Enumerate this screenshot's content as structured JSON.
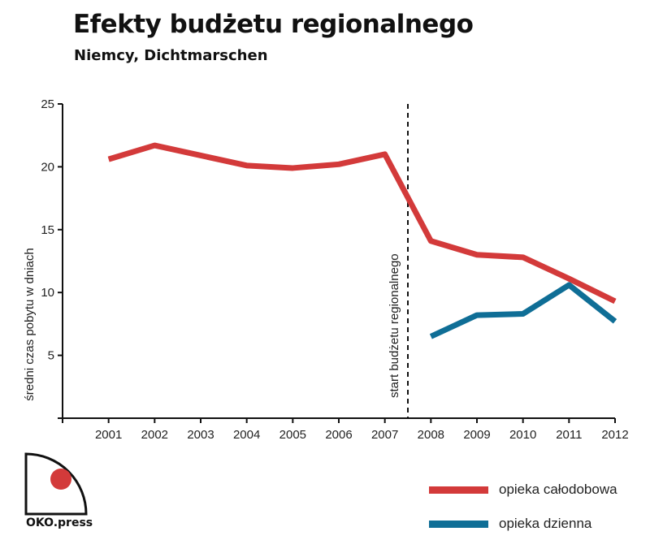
{
  "title": "Efekty budżetu regionalnego",
  "subtitle": "Niemcy, Dichtmarschen",
  "logo_text": "OKO.press",
  "colors": {
    "red": "#d33a3a",
    "blue": "#0f6e96",
    "axis": "#111111",
    "logo_dot": "#d33a3a"
  },
  "chart_data": {
    "type": "line",
    "ylabel": "średni czas pobytu w dniach",
    "xlabel": "",
    "ylim": [
      0,
      25
    ],
    "yticks": [
      5,
      10,
      15,
      20,
      25
    ],
    "x": [
      2001,
      2002,
      2003,
      2004,
      2005,
      2006,
      2007,
      2008,
      2009,
      2010,
      2011,
      2012
    ],
    "series": [
      {
        "name": "opieka całodobowa",
        "color": "#d33a3a",
        "values": [
          20.6,
          21.7,
          20.9,
          20.1,
          19.9,
          20.2,
          21.0,
          14.1,
          13.0,
          12.8,
          11.1,
          9.3
        ]
      },
      {
        "name": "opieka dzienna",
        "color": "#0f6e96",
        "values": [
          null,
          null,
          null,
          null,
          null,
          null,
          null,
          6.5,
          8.2,
          8.3,
          10.6,
          7.7
        ]
      }
    ],
    "annotation": {
      "label": "start budżetu regionalnego",
      "x": 2007.5
    },
    "grid": false,
    "legend_position": "bottom-right"
  }
}
